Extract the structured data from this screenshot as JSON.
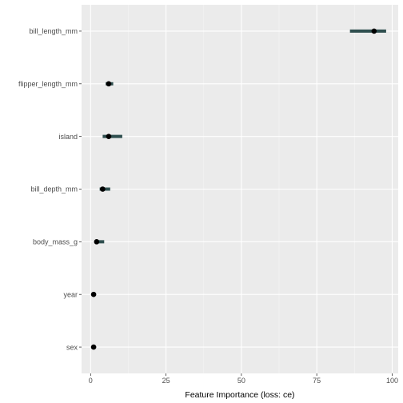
{
  "chart_data": {
    "type": "dot-interval",
    "xlabel": "Feature Importance (loss: ce)",
    "ylabel": "",
    "xlim": [
      -3,
      102
    ],
    "x_ticks": [
      0,
      25,
      50,
      75,
      100
    ],
    "grid": true,
    "features": [
      {
        "name": "bill_length_mm",
        "importance": 94,
        "low": 86,
        "high": 98
      },
      {
        "name": "flipper_length_mm",
        "importance": 6,
        "low": 5,
        "high": 7.5
      },
      {
        "name": "island",
        "importance": 6,
        "low": 4,
        "high": 10.5
      },
      {
        "name": "bill_depth_mm",
        "importance": 4,
        "low": 3,
        "high": 6.5
      },
      {
        "name": "body_mass_g",
        "importance": 2,
        "low": 1.5,
        "high": 4.5
      },
      {
        "name": "year",
        "importance": 1,
        "low": 1,
        "high": 1
      },
      {
        "name": "sex",
        "importance": 1,
        "low": 1,
        "high": 1
      }
    ],
    "colors": {
      "panel": "#ebebeb",
      "grid_major": "#ffffff",
      "grid_minor": "#f5f5f5",
      "interval": "#2f4f4f",
      "point": "#000000"
    }
  }
}
